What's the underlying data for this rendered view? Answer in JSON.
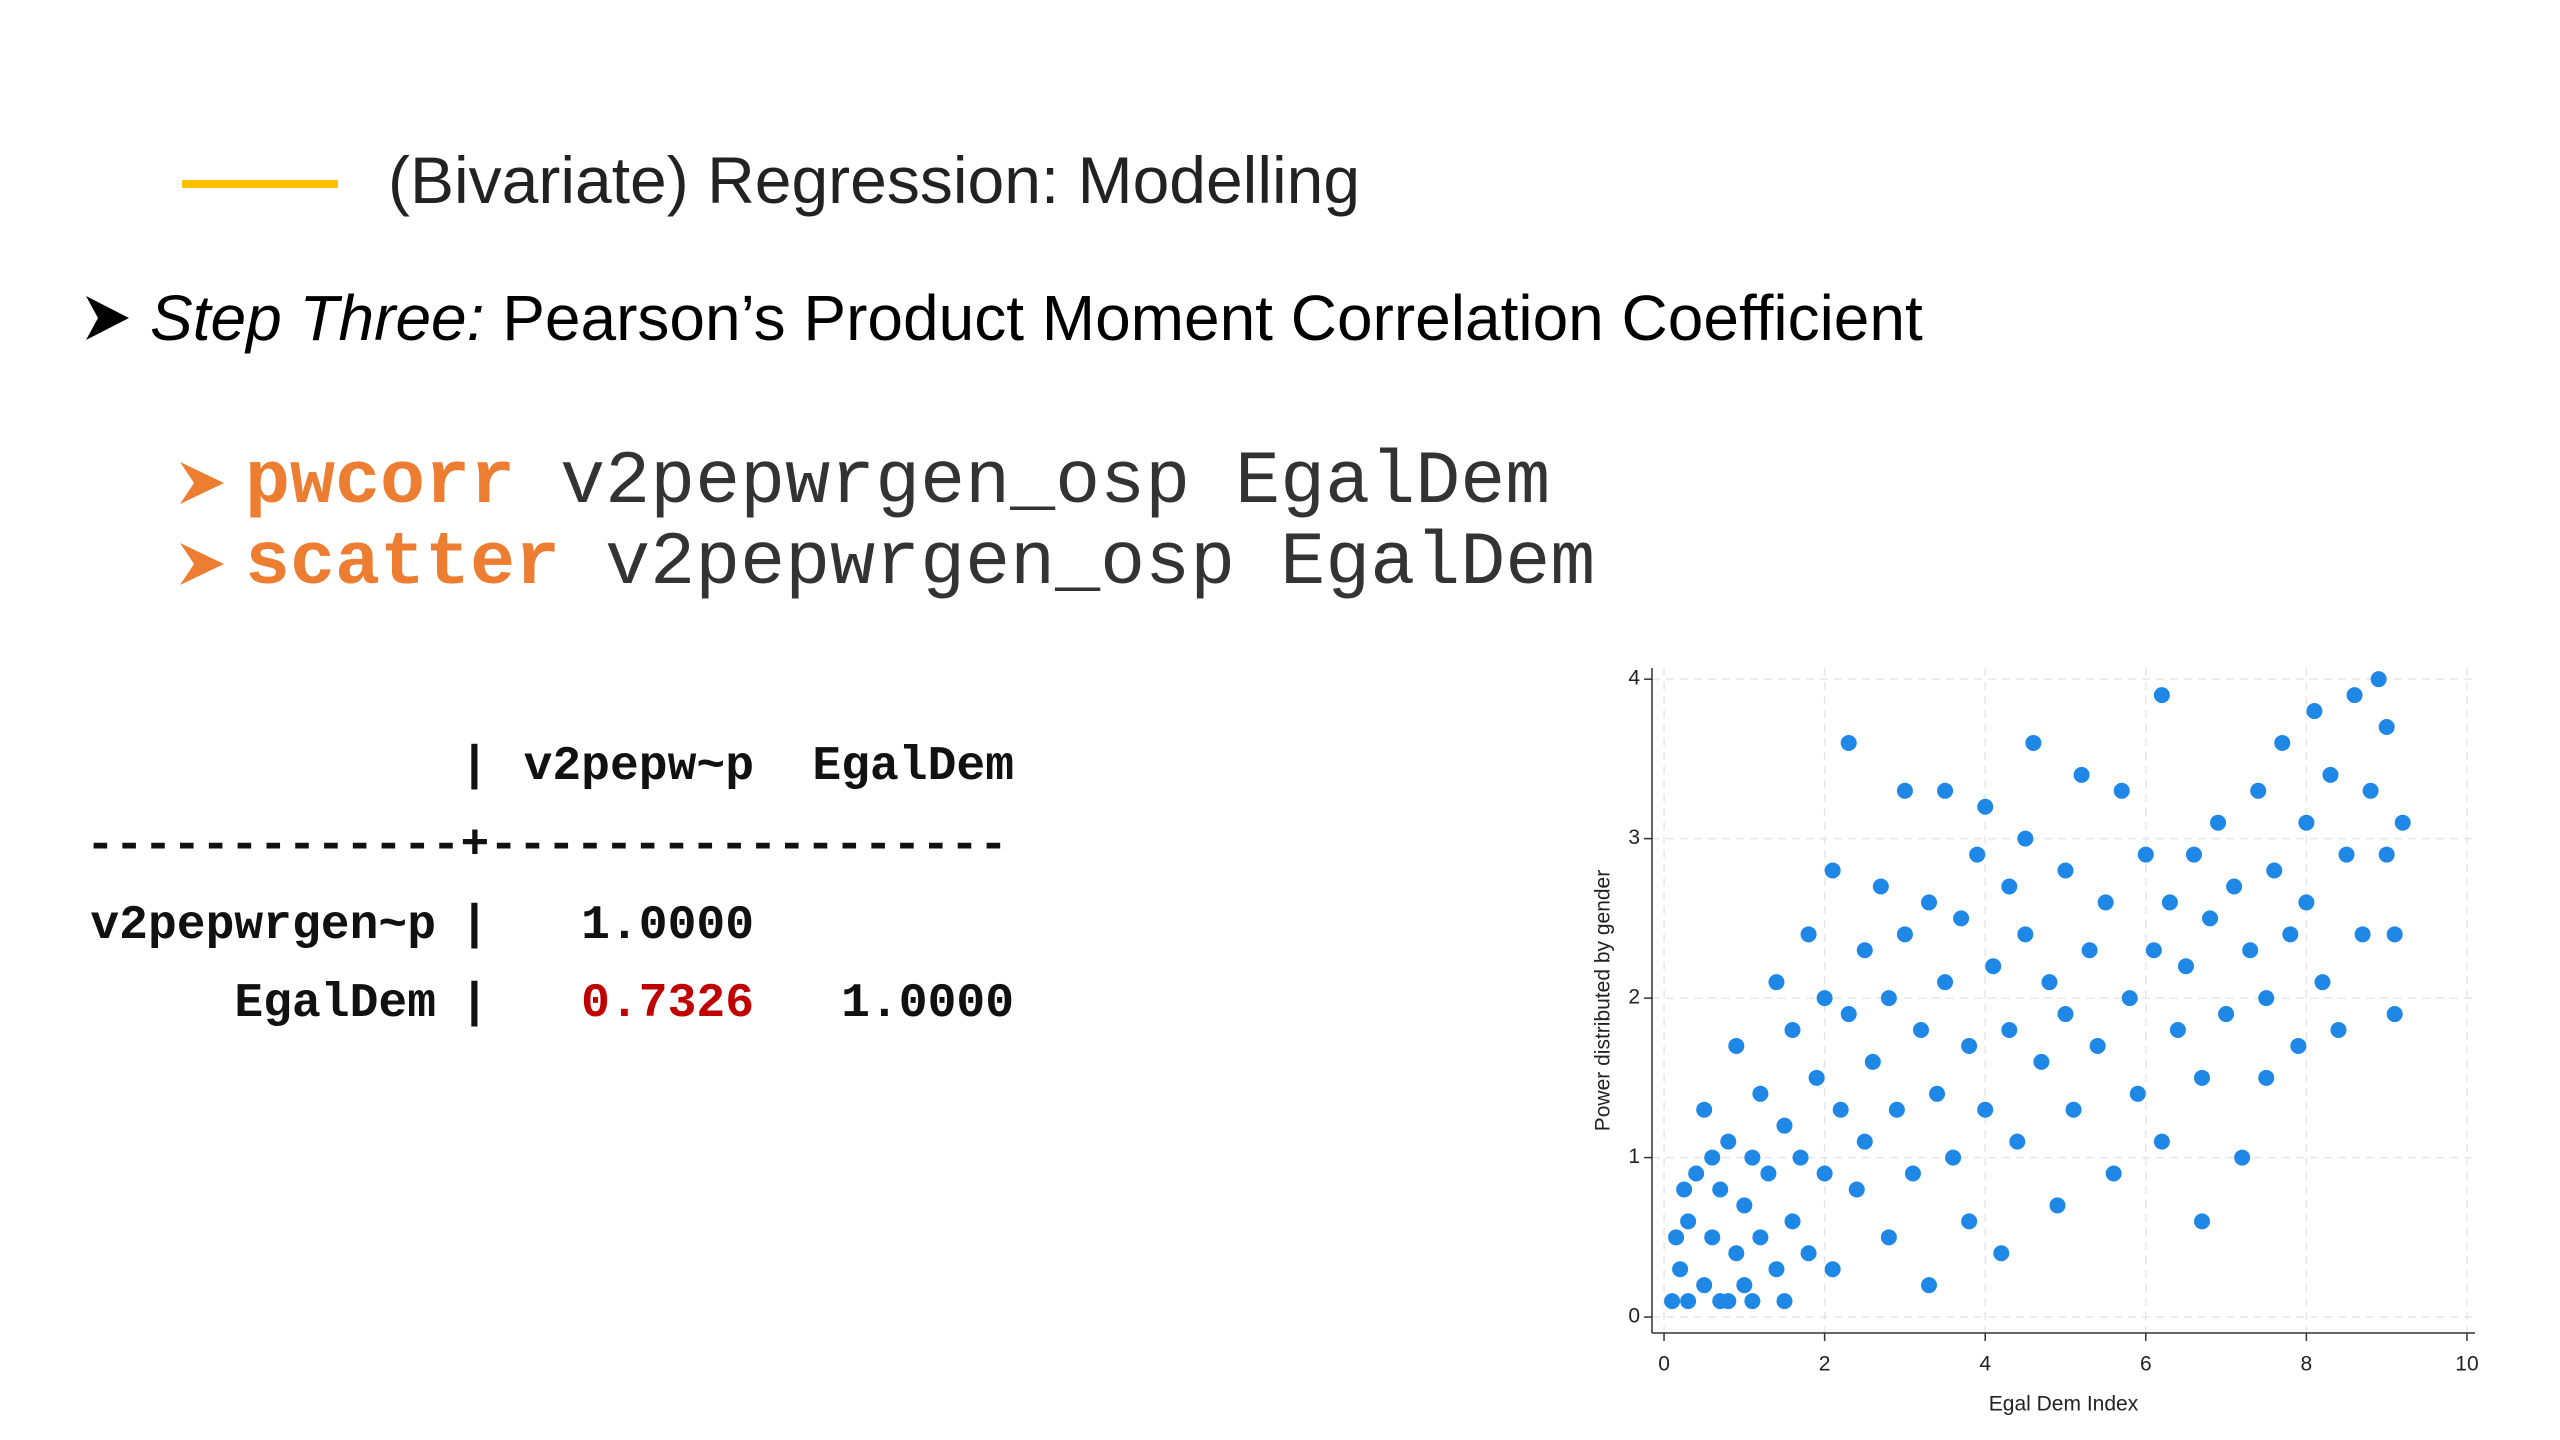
{
  "header": {
    "title": "(Bivariate) Regression: Modelling"
  },
  "bullet": {
    "lead": "Step Three:",
    "text": "Pearson’s Product Moment Correlation Coefficient"
  },
  "commands": [
    {
      "command": "pwcorr",
      "args": "v2pepwrgen_osp EgalDem"
    },
    {
      "command": "scatter",
      "args": "v2pepwrgen_osp EgalDem"
    }
  ],
  "table": {
    "columns": [
      "v2pepw~p",
      "EgalDem"
    ],
    "divider": "|",
    "rule": "-------------+------------------",
    "rows": [
      [
        "v2pepwrgen~p",
        "1.0000"
      ],
      [
        "EgalDem",
        "0.7326",
        "1.0000"
      ]
    ]
  },
  "chart_data": {
    "type": "scatter",
    "xlabel": "Egal Dem Index",
    "ylabel": "Power distributed by gender",
    "xlim": [
      -0.15,
      10.1
    ],
    "ylim": [
      -0.1,
      4.07
    ],
    "xticks": [
      0,
      2,
      4,
      6,
      8,
      10
    ],
    "yticks": [
      0,
      1,
      2,
      3,
      4
    ],
    "grid": true,
    "color": "#1f87e6",
    "x": [
      0.1,
      0.2,
      0.3,
      0.3,
      0.4,
      0.5,
      0.5,
      0.6,
      0.7,
      0.7,
      0.8,
      0.9,
      0.9,
      1.0,
      1.0,
      1.1,
      1.2,
      1.2,
      1.3,
      1.4,
      1.4,
      1.5,
      1.6,
      1.6,
      1.7,
      1.8,
      1.8,
      1.9,
      2.0,
      2.0,
      2.1,
      2.1,
      2.2,
      2.3,
      2.3,
      2.4,
      2.5,
      2.5,
      2.6,
      2.7,
      2.8,
      2.8,
      2.9,
      3.0,
      3.0,
      3.1,
      3.2,
      3.3,
      3.3,
      3.4,
      3.5,
      3.5,
      3.6,
      3.7,
      3.8,
      3.8,
      3.9,
      4.0,
      4.0,
      4.1,
      4.2,
      4.3,
      4.3,
      4.4,
      4.5,
      4.5,
      4.6,
      4.7,
      4.8,
      4.9,
      5.0,
      5.0,
      5.1,
      5.2,
      5.3,
      5.4,
      5.5,
      5.6,
      5.7,
      5.8,
      5.9,
      6.0,
      6.1,
      6.2,
      6.2,
      6.3,
      6.4,
      6.5,
      6.6,
      6.7,
      6.7,
      6.8,
      6.9,
      7.0,
      7.1,
      7.2,
      7.3,
      7.4,
      7.5,
      7.5,
      7.6,
      7.7,
      7.8,
      7.9,
      8.0,
      8.0,
      8.1,
      8.2,
      8.3,
      8.4,
      8.5,
      8.6,
      8.7,
      8.8,
      8.9,
      9.0,
      9.0,
      9.1,
      9.1,
      9.2,
      0.15,
      0.25,
      0.6,
      1.1,
      0.8,
      1.5
    ],
    "y": [
      0.1,
      0.3,
      0.6,
      0.1,
      0.9,
      0.2,
      1.3,
      0.5,
      0.8,
      0.1,
      1.1,
      0.4,
      1.7,
      0.7,
      0.2,
      1.0,
      1.4,
      0.5,
      0.9,
      2.1,
      0.3,
      1.2,
      0.6,
      1.8,
      1.0,
      2.4,
      0.4,
      1.5,
      0.9,
      2.0,
      2.8,
      0.3,
      1.3,
      1.9,
      3.6,
      0.8,
      2.3,
      1.1,
      1.6,
      2.7,
      0.5,
      2.0,
      1.3,
      3.3,
      2.4,
      0.9,
      1.8,
      2.6,
      0.2,
      1.4,
      3.3,
      2.1,
      1.0,
      2.5,
      1.7,
      0.6,
      2.9,
      3.2,
      1.3,
      2.2,
      0.4,
      2.7,
      1.8,
      1.1,
      3.0,
      2.4,
      3.6,
      1.6,
      2.1,
      0.7,
      2.8,
      1.9,
      1.3,
      3.4,
      2.3,
      1.7,
      2.6,
      0.9,
      3.3,
      2.0,
      1.4,
      2.9,
      2.3,
      3.9,
      1.1,
      2.6,
      1.8,
      2.2,
      2.9,
      0.6,
      1.5,
      2.5,
      3.1,
      1.9,
      2.7,
      1.0,
      2.3,
      3.3,
      2.0,
      1.5,
      2.8,
      3.6,
      2.4,
      1.7,
      3.1,
      2.6,
      3.8,
      2.1,
      3.4,
      1.8,
      2.9,
      3.9,
      2.4,
      3.3,
      4.0,
      2.9,
      3.7,
      2.4,
      1.9,
      3.1,
      0.5,
      0.8,
      1.0,
      0.1,
      0.1,
      0.1
    ]
  }
}
